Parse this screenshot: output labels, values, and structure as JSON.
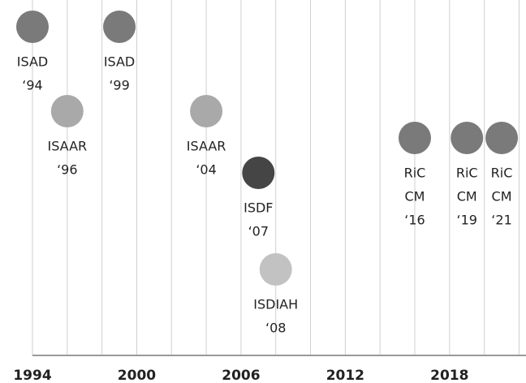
{
  "chart_data": {
    "type": "timeline",
    "xlim": [
      1994,
      2022.4
    ],
    "xticks": [
      1994,
      2000,
      2006,
      2012,
      2018
    ],
    "grid_xticks": [
      1994,
      1996,
      1998,
      2000,
      2002,
      2004,
      2006,
      2008,
      2010,
      2012,
      2014,
      2016,
      2018,
      2020,
      2022
    ],
    "grid": true,
    "events": [
      {
        "label": [
          "ISAD",
          "‘94"
        ],
        "x": 1994,
        "color": "#7a7a7a"
      },
      {
        "label": [
          "ISAAR",
          "‘96"
        ],
        "x": 1996,
        "color": "#a9a9a9"
      },
      {
        "label": [
          "ISAD",
          "‘99"
        ],
        "x": 1999,
        "color": "#7a7a7a"
      },
      {
        "label": [
          "ISAAR",
          "‘04"
        ],
        "x": 2004,
        "color": "#a9a9a9"
      },
      {
        "label": [
          "ISDF",
          "‘07"
        ],
        "x": 2007,
        "color": "#454545"
      },
      {
        "label": [
          "ISDIAH",
          "‘08"
        ],
        "x": 2008,
        "color": "#c2c2c2"
      },
      {
        "label": [
          "RiC",
          "CM",
          "‘16"
        ],
        "x": 2016,
        "color": "#7a7a7a"
      },
      {
        "label": [
          "RiC",
          "CM",
          "‘19"
        ],
        "x": 2019,
        "color": "#7a7a7a"
      },
      {
        "label": [
          "RiC",
          "CM",
          "‘21"
        ],
        "x": 2021,
        "color": "#7a7a7a"
      }
    ]
  }
}
